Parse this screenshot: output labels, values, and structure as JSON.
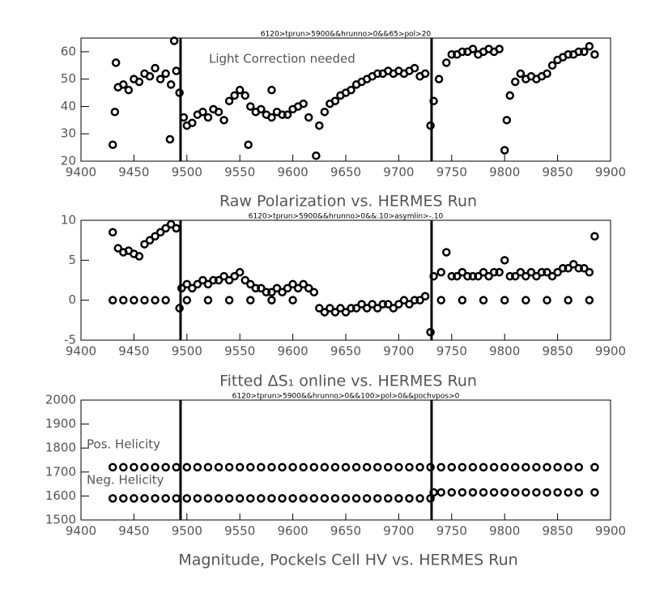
{
  "chart_data": [
    {
      "type": "scatter",
      "title": "6120>tprun>5900&&hrunno>0&&65>pol>20",
      "x_label": "Raw Polarization vs. HERMES Run",
      "annotations": [
        "Light Correction needed"
      ],
      "xlim": [
        9400,
        9900
      ],
      "xticks": [
        9400,
        9450,
        9500,
        9550,
        9600,
        9650,
        9700,
        9750,
        9800,
        9850,
        9900
      ],
      "ylim": [
        20,
        65
      ],
      "yticks": [
        20,
        30,
        40,
        50,
        60
      ],
      "vlines": [
        9494,
        9731
      ],
      "series": [
        {
          "color": "#000000",
          "x": [
            9430,
            9432,
            9433,
            9435,
            9440,
            9445,
            9450,
            9455,
            9460,
            9465,
            9470,
            9475,
            9480,
            9484,
            9485,
            9488,
            9490,
            9493,
            9497,
            9500,
            9505,
            9510,
            9515,
            9520,
            9525,
            9530,
            9535,
            9540,
            9545,
            9550,
            9555,
            9558,
            9560,
            9565,
            9570,
            9575,
            9580,
            9580,
            9585,
            9590,
            9595,
            9600,
            9605,
            9610,
            9615,
            9622,
            9625,
            9630,
            9635,
            9640,
            9645,
            9650,
            9655,
            9660,
            9665,
            9670,
            9675,
            9680,
            9685,
            9690,
            9695,
            9700,
            9705,
            9710,
            9715,
            9720,
            9725,
            9730,
            9733,
            9738,
            9745,
            9750,
            9755,
            9760,
            9765,
            9770,
            9775,
            9780,
            9785,
            9790,
            9795,
            9800,
            9802,
            9805,
            9810,
            9815,
            9820,
            9825,
            9830,
            9835,
            9840,
            9845,
            9850,
            9855,
            9860,
            9865,
            9870,
            9875,
            9880,
            9885
          ],
          "values": [
            26,
            38,
            56,
            47,
            48,
            46,
            50,
            49,
            52,
            51,
            54,
            50,
            52,
            28,
            48,
            64,
            53,
            45,
            36,
            33,
            34,
            37,
            38,
            36,
            39,
            38,
            35,
            42,
            44,
            46,
            44,
            26,
            40,
            38,
            39,
            37,
            36,
            46,
            38,
            37,
            37,
            39,
            40,
            41,
            36,
            22,
            33,
            38,
            41,
            42,
            44,
            45,
            46,
            48,
            49,
            50,
            51,
            52,
            52,
            53,
            52,
            53,
            52,
            53,
            54,
            51,
            52,
            33,
            42,
            50,
            56,
            59,
            59,
            60,
            60,
            61,
            59,
            60,
            61,
            60,
            61,
            24,
            35,
            44,
            49,
            52,
            50,
            51,
            50,
            51,
            52,
            55,
            57,
            58,
            59,
            59,
            60,
            60,
            62,
            59
          ]
        }
      ]
    },
    {
      "type": "scatter",
      "title": "6120>tprun>5900&&hrunno>0&&.10>asymlin>-.10",
      "x_label": "Fitted ΔS₁ online vs. HERMES Run",
      "xlim": [
        9400,
        9900
      ],
      "xticks": [
        9400,
        9450,
        9500,
        9550,
        9600,
        9650,
        9700,
        9750,
        9800,
        9850,
        9900
      ],
      "ylim": [
        -5,
        10
      ],
      "yticks": [
        -5,
        0,
        5,
        10
      ],
      "vlines": [
        9494,
        9731
      ],
      "series": [
        {
          "color": "#000000",
          "x": [
            9430,
            9435,
            9440,
            9445,
            9450,
            9455,
            9460,
            9465,
            9470,
            9475,
            9480,
            9485,
            9490,
            9493,
            9495,
            9500,
            9505,
            9510,
            9515,
            9520,
            9525,
            9530,
            9535,
            9540,
            9545,
            9550,
            9555,
            9560,
            9565,
            9570,
            9575,
            9580,
            9585,
            9590,
            9595,
            9600,
            9605,
            9610,
            9615,
            9620,
            9625,
            9630,
            9635,
            9640,
            9645,
            9650,
            9655,
            9660,
            9665,
            9670,
            9675,
            9680,
            9685,
            9690,
            9695,
            9700,
            9705,
            9710,
            9715,
            9720,
            9725,
            9730,
            9733,
            9740,
            9745,
            9750,
            9755,
            9760,
            9765,
            9770,
            9775,
            9780,
            9785,
            9790,
            9795,
            9800,
            9805,
            9810,
            9815,
            9820,
            9825,
            9830,
            9835,
            9840,
            9845,
            9850,
            9855,
            9860,
            9865,
            9870,
            9875,
            9880,
            9885,
            9430,
            9440,
            9450,
            9460,
            9470,
            9480,
            9500,
            9520,
            9540,
            9560,
            9580,
            9600,
            9740,
            9760,
            9780,
            9800,
            9820,
            9840,
            9860,
            9880
          ],
          "values": [
            8.5,
            6.5,
            6,
            6.2,
            5.8,
            5.5,
            7,
            7.5,
            8,
            8.5,
            9,
            9.5,
            9,
            -1,
            1.5,
            2,
            1.5,
            2,
            2.5,
            2,
            2.5,
            2.5,
            3,
            2.5,
            3,
            3.5,
            2.5,
            2,
            1.5,
            1.5,
            1,
            1,
            1.5,
            1,
            1.5,
            2,
            1.5,
            2,
            1.5,
            1,
            -1,
            -1.5,
            -1,
            -1.5,
            -1,
            -1.5,
            -1,
            -1,
            -0.5,
            -1,
            -0.5,
            -1,
            -0.5,
            -0.5,
            -1,
            -0.5,
            0,
            -0.5,
            0,
            0,
            0.5,
            -4,
            3,
            3.5,
            6,
            3,
            3,
            3.5,
            3,
            3,
            3,
            3.5,
            3,
            3.5,
            3.5,
            5,
            3,
            3,
            3.5,
            3,
            3.5,
            3,
            3.5,
            3.5,
            3,
            3.5,
            4,
            4,
            4.5,
            4,
            4,
            3.5,
            8,
            0,
            0,
            0,
            0,
            0,
            0,
            0,
            0,
            0,
            0,
            0,
            0,
            0,
            0,
            0,
            0,
            0,
            0,
            0,
            0
          ]
        }
      ]
    },
    {
      "type": "scatter",
      "title": "6120>tprun>5900&&hrunno>0&&100>pol>0&&pochvpos>0",
      "x_label": "Magnitude, Pockels Cell HV vs. HERMES Run",
      "annotations": [
        "Pos. Helicity",
        "Neg. Helicity"
      ],
      "xlim": [
        9400,
        9900
      ],
      "xticks": [
        9400,
        9450,
        9500,
        9550,
        9600,
        9650,
        9700,
        9750,
        9800,
        9850,
        9900
      ],
      "ylim": [
        1500,
        2000
      ],
      "yticks": [
        1500,
        1600,
        1700,
        1800,
        1900,
        2000
      ],
      "vlines": [
        9494,
        9731
      ],
      "series": [
        {
          "color": "#000000",
          "x": [
            9430,
            9440,
            9450,
            9460,
            9470,
            9480,
            9490,
            9500,
            9510,
            9520,
            9530,
            9540,
            9550,
            9560,
            9570,
            9580,
            9590,
            9600,
            9610,
            9620,
            9630,
            9640,
            9650,
            9660,
            9670,
            9680,
            9690,
            9700,
            9710,
            9720,
            9730,
            9740,
            9750,
            9760,
            9770,
            9780,
            9790,
            9800,
            9810,
            9820,
            9830,
            9840,
            9850,
            9860,
            9870,
            9885
          ],
          "values": [
            1720,
            1720,
            1720,
            1720,
            1720,
            1720,
            1720,
            1720,
            1720,
            1720,
            1720,
            1720,
            1720,
            1720,
            1720,
            1720,
            1720,
            1720,
            1720,
            1720,
            1720,
            1720,
            1720,
            1720,
            1720,
            1720,
            1720,
            1720,
            1720,
            1720,
            1720,
            1720,
            1720,
            1720,
            1720,
            1720,
            1720,
            1720,
            1720,
            1720,
            1720,
            1720,
            1720,
            1720,
            1720,
            1720
          ]
        },
        {
          "color": "#000000",
          "x": [
            9430,
            9440,
            9450,
            9460,
            9470,
            9480,
            9490,
            9500,
            9510,
            9520,
            9530,
            9540,
            9550,
            9560,
            9570,
            9580,
            9590,
            9600,
            9610,
            9620,
            9630,
            9640,
            9650,
            9660,
            9670,
            9680,
            9690,
            9700,
            9710,
            9720,
            9730,
            9733,
            9740,
            9750,
            9760,
            9770,
            9780,
            9790,
            9800,
            9810,
            9820,
            9830,
            9840,
            9850,
            9860,
            9870,
            9885
          ],
          "values": [
            1590,
            1590,
            1590,
            1590,
            1590,
            1590,
            1590,
            1590,
            1590,
            1590,
            1590,
            1590,
            1590,
            1590,
            1590,
            1590,
            1590,
            1590,
            1590,
            1590,
            1590,
            1590,
            1590,
            1590,
            1590,
            1590,
            1590,
            1590,
            1590,
            1590,
            1590,
            1615,
            1615,
            1615,
            1615,
            1615,
            1615,
            1615,
            1615,
            1615,
            1615,
            1615,
            1615,
            1615,
            1615,
            1615,
            1615
          ]
        }
      ]
    }
  ]
}
